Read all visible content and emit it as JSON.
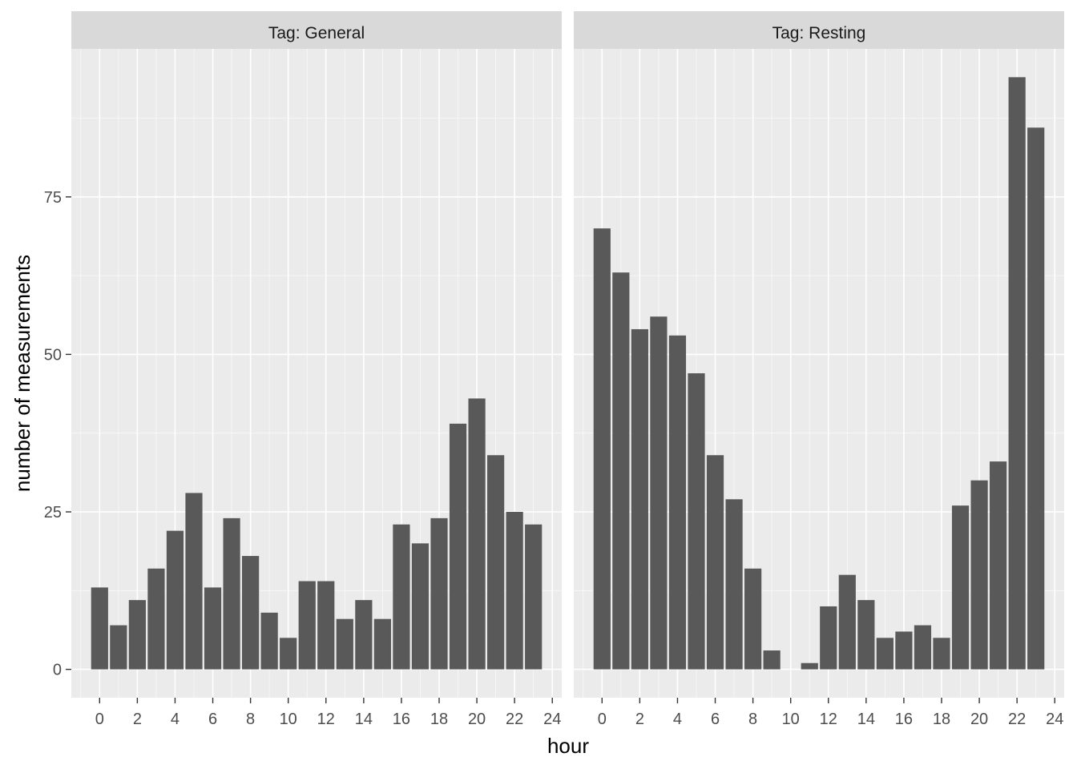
{
  "chart_data": {
    "type": "bar",
    "xlabel": "hour",
    "ylabel": "number of measurements",
    "x_ticks": [
      0,
      2,
      4,
      6,
      8,
      10,
      12,
      14,
      16,
      18,
      20,
      22,
      24
    ],
    "y_ticks": [
      0,
      25,
      50,
      75
    ],
    "xlim": [
      -1.5,
      24.5
    ],
    "ylim": [
      -4.5,
      98.5
    ],
    "grid": true,
    "bar_color": "#595959",
    "panel_bg": "#ebebeb",
    "strip_bg": "#d9d9d9",
    "grid_color": "#ffffff",
    "panels": [
      {
        "label": "Tag: General",
        "x": [
          0,
          1,
          2,
          3,
          4,
          5,
          6,
          7,
          8,
          9,
          10,
          11,
          12,
          13,
          14,
          15,
          16,
          17,
          18,
          19,
          20,
          21,
          22,
          23
        ],
        "values": [
          13,
          7,
          11,
          16,
          22,
          28,
          13,
          24,
          18,
          9,
          5,
          14,
          14,
          8,
          11,
          8,
          23,
          20,
          24,
          39,
          43,
          34,
          25,
          23
        ]
      },
      {
        "label": "Tag: Resting",
        "x": [
          0,
          1,
          2,
          3,
          4,
          5,
          6,
          7,
          8,
          9,
          10,
          11,
          12,
          13,
          14,
          15,
          16,
          17,
          18,
          19,
          20,
          21,
          22,
          23
        ],
        "values": [
          70,
          63,
          54,
          56,
          53,
          47,
          34,
          27,
          16,
          3,
          0,
          1,
          10,
          15,
          11,
          5,
          6,
          7,
          5,
          26,
          30,
          33,
          94,
          86
        ]
      }
    ]
  }
}
